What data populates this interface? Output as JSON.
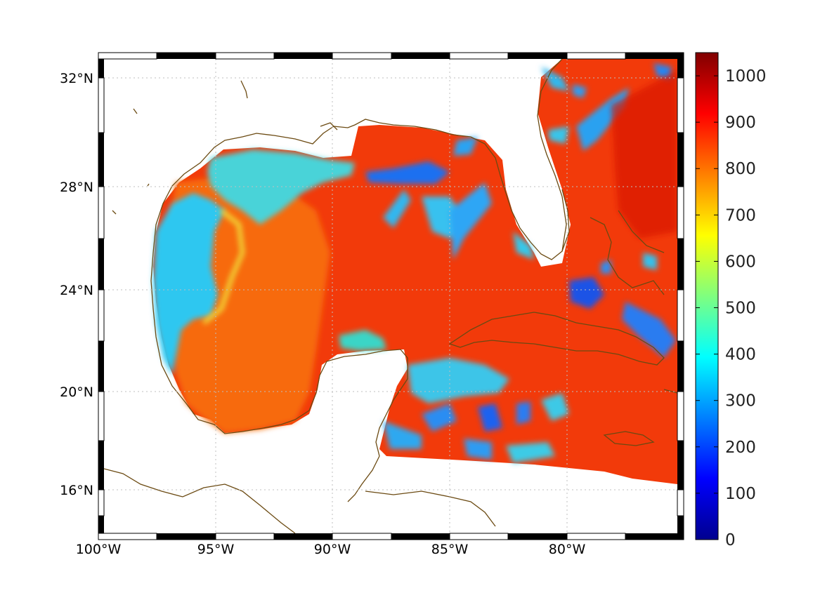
{
  "map": {
    "projection": "mercator",
    "region": "Gulf of Mexico and western Caribbean",
    "coastline_color": "#6b4a12",
    "frame_colors": [
      "#000000",
      "#ffffff"
    ],
    "lon_ticks": [
      {
        "lon": -100,
        "label": "100°W"
      },
      {
        "lon": -95,
        "label": "95°W"
      },
      {
        "lon": -90,
        "label": "90°W"
      },
      {
        "lon": -85,
        "label": "85°W"
      },
      {
        "lon": -80,
        "label": "80°W"
      }
    ],
    "lat_ticks": [
      {
        "lat": 32,
        "label": "32°N"
      },
      {
        "lat": 28,
        "label": "28°N"
      },
      {
        "lat": 24,
        "label": "24°N"
      },
      {
        "lat": 20,
        "label": "20°N"
      },
      {
        "lat": 16,
        "label": "16°N"
      }
    ],
    "gridlines": true
  },
  "colorbar": {
    "colormap": "jet",
    "range": [
      0,
      1050
    ],
    "ticks": [
      {
        "value": 0,
        "label": "0"
      },
      {
        "value": 100,
        "label": "100"
      },
      {
        "value": 200,
        "label": "200"
      },
      {
        "value": 300,
        "label": "300"
      },
      {
        "value": 400,
        "label": "400"
      },
      {
        "value": 500,
        "label": "500"
      },
      {
        "value": 600,
        "label": "600"
      },
      {
        "value": 700,
        "label": "700"
      },
      {
        "value": 800,
        "label": "800"
      },
      {
        "value": 900,
        "label": "900"
      },
      {
        "value": 1000,
        "label": "1000"
      }
    ]
  }
}
